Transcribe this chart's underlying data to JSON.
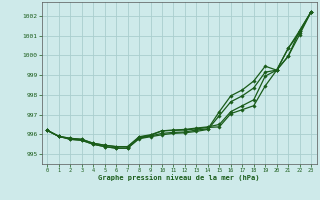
{
  "xlabel": "Graphe pression niveau de la mer (hPa)",
  "ylim": [
    994.5,
    1002.7
  ],
  "y_ticks": [
    995,
    996,
    997,
    998,
    999,
    1000,
    1001,
    1002
  ],
  "bg_color": "#ceeaea",
  "grid_color": "#aacece",
  "line_color": "#1a5c1a",
  "series1": [
    996.2,
    995.9,
    995.8,
    995.75,
    995.55,
    995.45,
    995.38,
    995.38,
    995.85,
    995.95,
    996.18,
    996.2,
    996.22,
    996.28,
    996.35,
    996.38,
    997.05,
    997.25,
    997.45,
    998.45,
    999.25,
    999.95,
    1001.25,
    1002.2
  ],
  "series2": [
    996.2,
    995.9,
    995.75,
    995.7,
    995.5,
    995.38,
    995.3,
    995.3,
    995.78,
    995.88,
    995.98,
    996.05,
    996.08,
    996.15,
    996.25,
    996.95,
    997.65,
    997.95,
    998.35,
    999.15,
    999.25,
    1000.35,
    1001.15,
    1002.2
  ],
  "series3": [
    996.2,
    995.9,
    995.75,
    995.7,
    995.5,
    995.38,
    995.3,
    995.3,
    995.8,
    995.92,
    996.05,
    996.1,
    996.12,
    996.22,
    996.28,
    997.15,
    997.95,
    998.25,
    998.7,
    999.45,
    999.25,
    1000.35,
    1001.25,
    1002.2
  ],
  "series4": [
    996.2,
    995.9,
    995.8,
    995.75,
    995.55,
    995.45,
    995.38,
    995.38,
    995.88,
    995.98,
    996.18,
    996.22,
    996.25,
    996.32,
    996.38,
    996.5,
    997.15,
    997.45,
    997.75,
    998.95,
    999.25,
    999.95,
    1001.05,
    1002.2
  ],
  "marker": "D",
  "markersize": 1.8,
  "linewidth": 0.9
}
